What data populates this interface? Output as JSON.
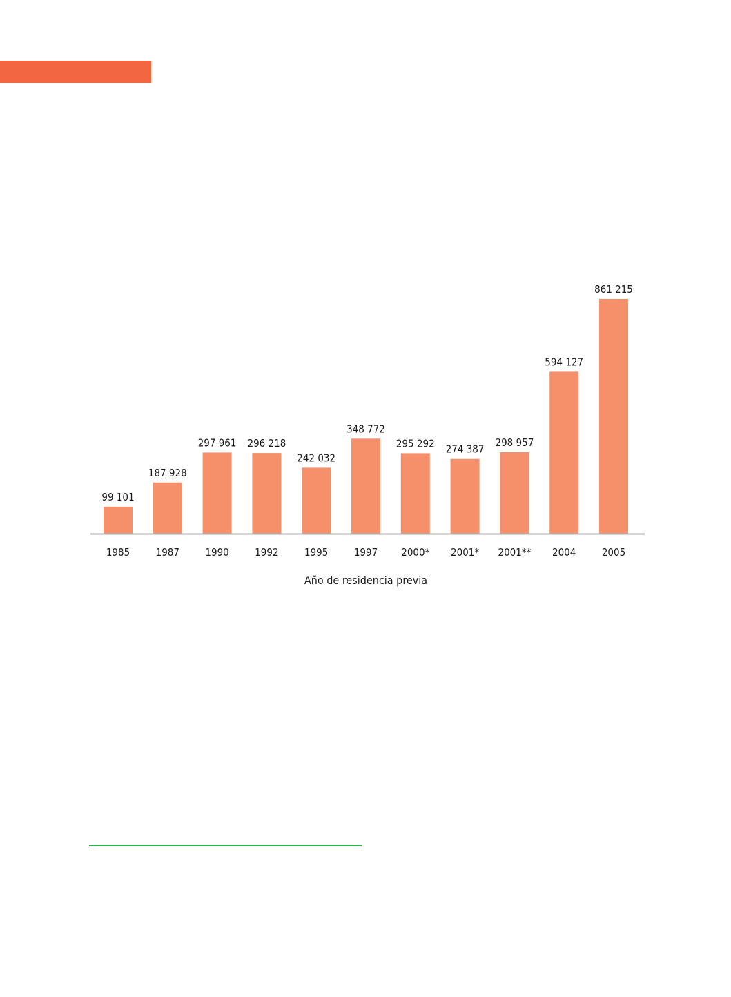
{
  "colors": {
    "accent": "#f26641",
    "bar": "#f6906a",
    "axis": "#b0b0b0",
    "footnote_rule": "#2db34a"
  },
  "chart_data": {
    "type": "bar",
    "title": "",
    "xlabel": "Año de residencia previa",
    "ylabel": "",
    "categories": [
      "1985",
      "1987",
      "1990",
      "1992",
      "1995",
      "1997",
      "2000*",
      "2001*",
      "2001**",
      "2004",
      "2005"
    ],
    "values": [
      99101,
      187928,
      297961,
      296218,
      242032,
      348772,
      295292,
      274387,
      298957,
      594127,
      861215
    ],
    "value_labels": [
      "99 101",
      "187 928",
      "297 961",
      "296 218",
      "242 032",
      "348 772",
      "295 292",
      "274 387",
      "298 957",
      "594 127",
      "861 215"
    ],
    "ylim": [
      0,
      861215
    ],
    "grid": false,
    "legend": "none"
  }
}
